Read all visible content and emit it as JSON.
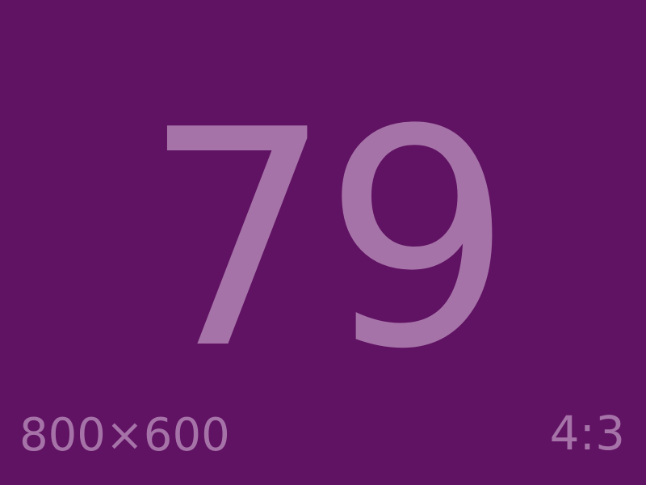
{
  "content": {
    "number": "79",
    "dimensions": "800×600",
    "aspect_ratio": "4:3"
  },
  "colors": {
    "background": "#601263",
    "text": "#a673a8"
  }
}
